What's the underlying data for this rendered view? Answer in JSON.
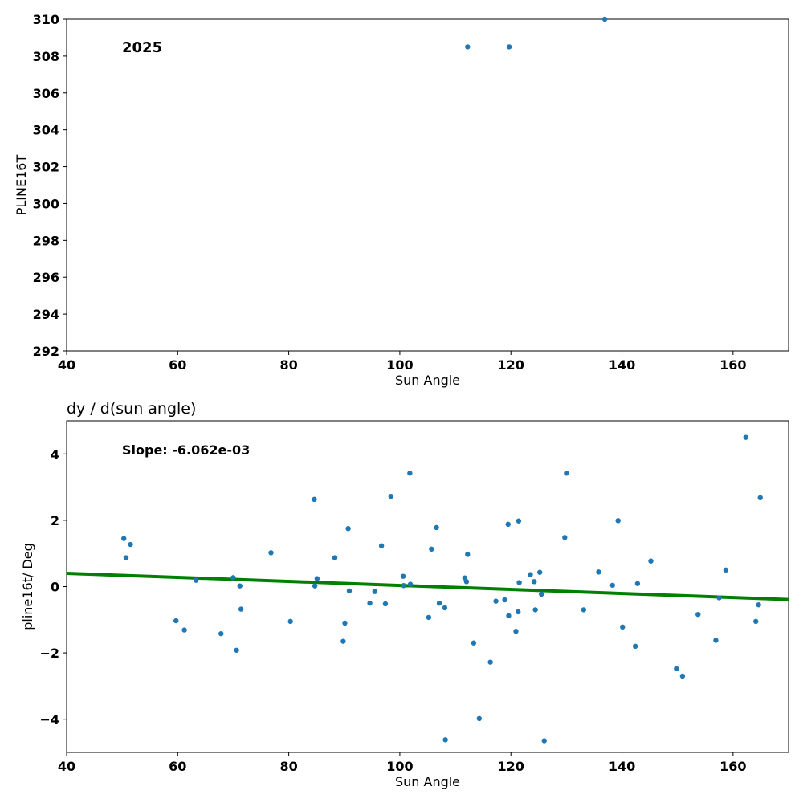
{
  "chart_data": [
    {
      "type": "scatter",
      "title": "",
      "annotation": "2025",
      "xlabel": "Sun Angle",
      "ylabel": "PLINE16T",
      "xlim": [
        40,
        170
      ],
      "ylim": [
        292,
        310
      ],
      "xticks": [
        "40",
        "60",
        "80",
        "100",
        "120",
        "140",
        "160"
      ],
      "yticks": [
        "292",
        "294",
        "296",
        "298",
        "300",
        "302",
        "304",
        "306",
        "308",
        "310"
      ],
      "marker_color": "#1f77b4",
      "points": [
        {
          "x": 112.2,
          "y": 308.5
        },
        {
          "x": 119.7,
          "y": 308.5
        },
        {
          "x": 136.9,
          "y": 310.0
        }
      ]
    },
    {
      "type": "scatter",
      "title": "dy / d(sun angle)",
      "annotation": "Slope: -6.062e-03",
      "xlabel": "Sun Angle",
      "ylabel": "pline16t/ Deg",
      "xlim": [
        40,
        170
      ],
      "ylim": [
        -5,
        5
      ],
      "xticks": [
        "40",
        "60",
        "80",
        "100",
        "120",
        "140",
        "160"
      ],
      "yticks": [
        "−4",
        "−2",
        "0",
        "2",
        "4"
      ],
      "marker_color": "#1f77b4",
      "fit_line": {
        "color": "#008000",
        "x": [
          40,
          170
        ],
        "y": [
          0.4,
          -0.39
        ]
      },
      "points": [
        {
          "x": 50.3,
          "y": 1.45
        },
        {
          "x": 50.7,
          "y": 0.87
        },
        {
          "x": 51.5,
          "y": 1.27
        },
        {
          "x": 59.7,
          "y": -1.03
        },
        {
          "x": 61.2,
          "y": -1.31
        },
        {
          "x": 63.3,
          "y": 0.19
        },
        {
          "x": 67.8,
          "y": -1.42
        },
        {
          "x": 70.0,
          "y": 0.27
        },
        {
          "x": 70.6,
          "y": -1.92
        },
        {
          "x": 71.2,
          "y": 0.02
        },
        {
          "x": 71.4,
          "y": -0.68
        },
        {
          "x": 76.8,
          "y": 1.02
        },
        {
          "x": 80.3,
          "y": -1.05
        },
        {
          "x": 84.6,
          "y": 2.63
        },
        {
          "x": 84.7,
          "y": 0.02
        },
        {
          "x": 85.1,
          "y": 0.24
        },
        {
          "x": 88.3,
          "y": 0.87
        },
        {
          "x": 89.8,
          "y": -1.65
        },
        {
          "x": 90.1,
          "y": -1.1
        },
        {
          "x": 90.7,
          "y": 1.75
        },
        {
          "x": 90.9,
          "y": -0.13
        },
        {
          "x": 94.6,
          "y": -0.5
        },
        {
          "x": 95.5,
          "y": -0.15
        },
        {
          "x": 96.7,
          "y": 1.23
        },
        {
          "x": 97.4,
          "y": -0.52
        },
        {
          "x": 98.4,
          "y": 2.72
        },
        {
          "x": 100.6,
          "y": 0.31
        },
        {
          "x": 100.7,
          "y": 0.03
        },
        {
          "x": 101.8,
          "y": 3.42
        },
        {
          "x": 101.9,
          "y": 0.07
        },
        {
          "x": 105.2,
          "y": -0.93
        },
        {
          "x": 105.7,
          "y": 1.13
        },
        {
          "x": 106.6,
          "y": 1.78
        },
        {
          "x": 107.1,
          "y": -0.5
        },
        {
          "x": 108.1,
          "y": -0.64
        },
        {
          "x": 108.2,
          "y": -4.62
        },
        {
          "x": 111.7,
          "y": 0.26
        },
        {
          "x": 112.0,
          "y": 0.15
        },
        {
          "x": 112.2,
          "y": 0.97
        },
        {
          "x": 113.3,
          "y": -1.7
        },
        {
          "x": 114.3,
          "y": -3.98
        },
        {
          "x": 116.3,
          "y": -2.28
        },
        {
          "x": 117.3,
          "y": -0.44
        },
        {
          "x": 118.9,
          "y": -0.4
        },
        {
          "x": 119.5,
          "y": 1.88
        },
        {
          "x": 119.6,
          "y": -0.88
        },
        {
          "x": 120.9,
          "y": -1.35
        },
        {
          "x": 121.4,
          "y": 1.98
        },
        {
          "x": 121.3,
          "y": -0.76
        },
        {
          "x": 121.5,
          "y": 0.12
        },
        {
          "x": 123.5,
          "y": 0.36
        },
        {
          "x": 124.2,
          "y": 0.15
        },
        {
          "x": 124.4,
          "y": -0.7
        },
        {
          "x": 125.2,
          "y": 0.43
        },
        {
          "x": 125.5,
          "y": -0.23
        },
        {
          "x": 126.0,
          "y": -4.65
        },
        {
          "x": 129.7,
          "y": 1.48
        },
        {
          "x": 130.0,
          "y": 3.42
        },
        {
          "x": 133.1,
          "y": -0.7
        },
        {
          "x": 135.8,
          "y": 0.44
        },
        {
          "x": 138.3,
          "y": 0.04
        },
        {
          "x": 139.3,
          "y": 1.99
        },
        {
          "x": 140.1,
          "y": -1.22
        },
        {
          "x": 142.4,
          "y": -1.8
        },
        {
          "x": 142.8,
          "y": 0.09
        },
        {
          "x": 145.2,
          "y": 0.77
        },
        {
          "x": 149.8,
          "y": -2.48
        },
        {
          "x": 150.9,
          "y": -2.7
        },
        {
          "x": 153.7,
          "y": -0.84
        },
        {
          "x": 156.9,
          "y": -1.62
        },
        {
          "x": 157.5,
          "y": -0.34
        },
        {
          "x": 158.7,
          "y": 0.5
        },
        {
          "x": 162.3,
          "y": 4.5
        },
        {
          "x": 164.1,
          "y": -1.05
        },
        {
          "x": 164.6,
          "y": -0.55
        },
        {
          "x": 164.9,
          "y": 2.68
        }
      ]
    }
  ]
}
